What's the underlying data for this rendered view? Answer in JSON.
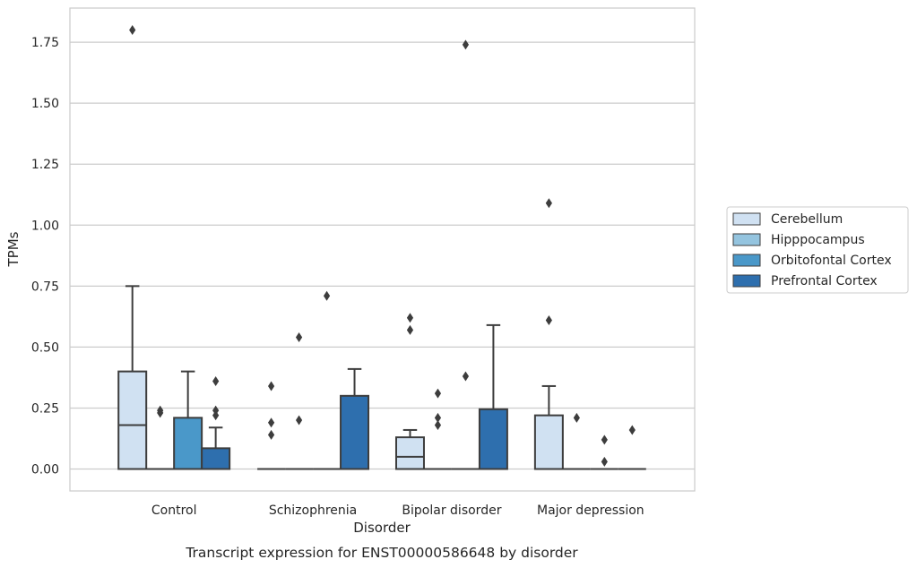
{
  "chart_data": {
    "type": "box",
    "title": "Transcript expression for ENST00000586648 by disorder",
    "xlabel": "Disorder",
    "ylabel": "TPMs",
    "ylim": [
      -0.09,
      1.89
    ],
    "yticks": [
      0.0,
      0.25,
      0.5,
      0.75,
      1.0,
      1.25,
      1.5,
      1.75
    ],
    "ytick_labels": [
      "0.00",
      "0.25",
      "0.50",
      "0.75",
      "1.00",
      "1.25",
      "1.50",
      "1.75"
    ],
    "categories": [
      "Control",
      "Schizophrenia",
      "Bipolar disorder",
      "Major depression"
    ],
    "grid": "horizontal",
    "legend_position": "right",
    "series": [
      {
        "name": "Cerebellum",
        "color": "#d0e1f2",
        "boxes": [
          {
            "q1": 0.0,
            "median": 0.18,
            "q3": 0.4,
            "whisker_low": 0.0,
            "whisker_high": 0.75,
            "outliers": [
              1.8
            ]
          },
          {
            "q1": 0.0,
            "median": 0.0,
            "q3": 0.0,
            "whisker_low": 0.0,
            "whisker_high": 0.0,
            "outliers": [
              0.14,
              0.19,
              0.34
            ]
          },
          {
            "q1": 0.0,
            "median": 0.05,
            "q3": 0.13,
            "whisker_low": 0.0,
            "whisker_high": 0.16,
            "outliers": [
              0.57,
              0.62
            ]
          },
          {
            "q1": 0.0,
            "median": 0.0,
            "q3": 0.22,
            "whisker_low": 0.0,
            "whisker_high": 0.34,
            "outliers": [
              0.61,
              1.09
            ]
          }
        ]
      },
      {
        "name": "Hipppocampus",
        "color": "#94c4df",
        "boxes": [
          {
            "q1": 0.0,
            "median": 0.0,
            "q3": 0.0,
            "whisker_low": 0.0,
            "whisker_high": 0.0,
            "outliers": [
              0.23,
              0.24
            ]
          },
          {
            "q1": 0.0,
            "median": 0.0,
            "q3": 0.0,
            "whisker_low": 0.0,
            "whisker_high": 0.0,
            "outliers": [
              0.2,
              0.54
            ]
          },
          {
            "q1": 0.0,
            "median": 0.0,
            "q3": 0.0,
            "whisker_low": 0.0,
            "whisker_high": 0.0,
            "outliers": [
              0.18,
              0.21,
              0.31
            ]
          },
          {
            "q1": 0.0,
            "median": 0.0,
            "q3": 0.0,
            "whisker_low": 0.0,
            "whisker_high": 0.0,
            "outliers": [
              0.21
            ]
          }
        ]
      },
      {
        "name": "Orbitofontal Cortex",
        "color": "#4a98c9",
        "boxes": [
          {
            "q1": 0.0,
            "median": 0.0,
            "q3": 0.21,
            "whisker_low": 0.0,
            "whisker_high": 0.4,
            "outliers": []
          },
          {
            "q1": 0.0,
            "median": 0.0,
            "q3": 0.0,
            "whisker_low": 0.0,
            "whisker_high": 0.0,
            "outliers": [
              0.71
            ]
          },
          {
            "q1": 0.0,
            "median": 0.0,
            "q3": 0.0,
            "whisker_low": 0.0,
            "whisker_high": 0.0,
            "outliers": [
              0.38,
              1.74
            ]
          },
          {
            "q1": 0.0,
            "median": 0.0,
            "q3": 0.0,
            "whisker_low": 0.0,
            "whisker_high": 0.0,
            "outliers": [
              0.03,
              0.12
            ]
          }
        ]
      },
      {
        "name": "Prefrontal Cortex",
        "color": "#2e6fae",
        "boxes": [
          {
            "q1": 0.0,
            "median": 0.0,
            "q3": 0.085,
            "whisker_low": 0.0,
            "whisker_high": 0.17,
            "outliers": [
              0.22,
              0.24,
              0.36
            ]
          },
          {
            "q1": 0.0,
            "median": 0.0,
            "q3": 0.3,
            "whisker_low": 0.0,
            "whisker_high": 0.41,
            "outliers": []
          },
          {
            "q1": 0.0,
            "median": 0.0,
            "q3": 0.245,
            "whisker_low": 0.0,
            "whisker_high": 0.59,
            "outliers": []
          },
          {
            "q1": 0.0,
            "median": 0.0,
            "q3": 0.0,
            "whisker_low": 0.0,
            "whisker_high": 0.0,
            "outliers": [
              0.16
            ]
          }
        ]
      }
    ]
  }
}
